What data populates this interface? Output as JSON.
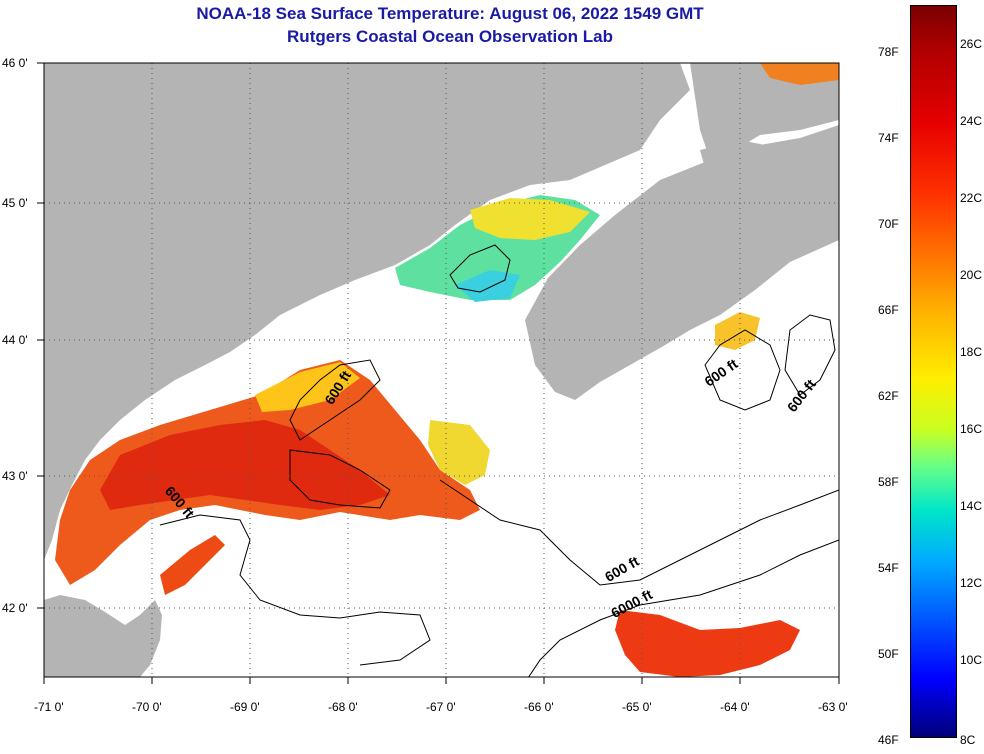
{
  "title": {
    "line1": "NOAA-18 Sea Surface Temperature:  August 06, 2022 1549 GMT",
    "line2": "Rutgers Coastal Ocean Observation Lab"
  },
  "axes": {
    "x_labels": [
      "-71 0'",
      "-70 0'",
      "-69 0'",
      "-68 0'",
      "-67 0'",
      "-66 0'",
      "-65 0'",
      "-64 0'",
      "-63 0'"
    ],
    "y_labels": [
      "46 0'",
      "45 0'",
      "44 0'",
      "43 0'",
      "42 0'"
    ]
  },
  "contour_labels": [
    "600 ft",
    "600 ft",
    "600 ft",
    "600 ft",
    "600 ft",
    "6000 ft"
  ],
  "colorbar": {
    "fahrenheit": [
      "78F",
      "74F",
      "70F",
      "66F",
      "62F",
      "58F",
      "54F",
      "50F",
      "46F"
    ],
    "celsius": [
      "26C",
      "24C",
      "22C",
      "20C",
      "18C",
      "16C",
      "14C",
      "12C",
      "10C",
      "8C"
    ]
  },
  "colors": {
    "land": "#b4b4b4",
    "title": "#1a1aa6"
  }
}
